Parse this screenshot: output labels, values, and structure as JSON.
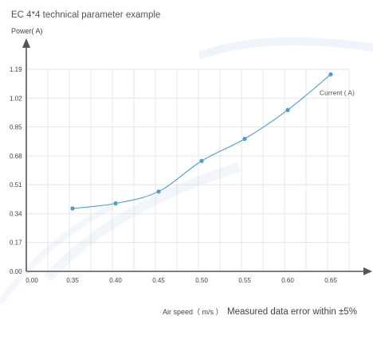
{
  "chart_data": {
    "type": "line",
    "title": "EC 4*4 technical parameter example",
    "ylabel": "Power( A)",
    "xlabel": "Air speed（ m/s ）",
    "note": "Measured data error within ±5%",
    "x_tick_labels": [
      "0.00",
      "0.35",
      "0.40",
      "0.45",
      "0.50",
      "0.55",
      "0.60",
      "0.65"
    ],
    "y_tick_labels": [
      "0.00",
      "0.17",
      "0.34",
      "0.51",
      "0.68",
      "0.85",
      "1.02",
      "1.19"
    ],
    "ylim": [
      0,
      1.19
    ],
    "grid": true,
    "series": [
      {
        "name": "Current ( A)",
        "color": "#4f9cc7",
        "points": [
          {
            "x": 0.35,
            "y": 0.37
          },
          {
            "x": 0.4,
            "y": 0.4
          },
          {
            "x": 0.45,
            "y": 0.47
          },
          {
            "x": 0.5,
            "y": 0.65
          },
          {
            "x": 0.55,
            "y": 0.78
          },
          {
            "x": 0.6,
            "y": 0.95
          },
          {
            "x": 0.65,
            "y": 1.16
          }
        ]
      }
    ]
  }
}
